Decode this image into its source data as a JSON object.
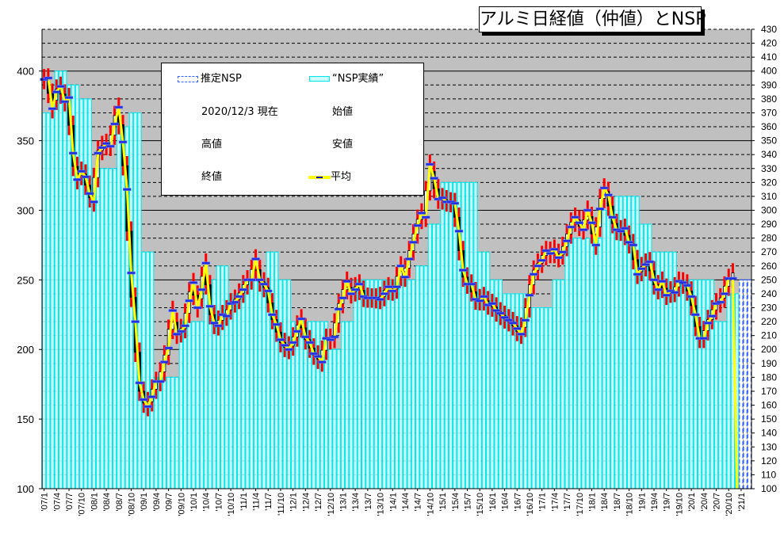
{
  "chart_data": {
    "type": "bar+candlestick+line",
    "title": "アルミ日経値（仲値）とNSP",
    "xlabel": "",
    "ylabel": "",
    "ylim": [
      100,
      430
    ],
    "grid": true,
    "legend_placement": "top-left",
    "legend": {
      "estimated_nsp": "推定NSP",
      "nsp_actual": "“NSP実績”",
      "as_of": "2020/12/3 現在",
      "open": "始値",
      "high": "高値",
      "low": "安値",
      "close": "終値",
      "average": "平均"
    },
    "left_ticks": [
      "100",
      "150",
      "200",
      "250",
      "300",
      "350",
      "400"
    ],
    "right_ticks": [
      "100",
      "110",
      "120",
      "130",
      "140",
      "150",
      "160",
      "170",
      "180",
      "190",
      "200",
      "210",
      "220",
      "230",
      "240",
      "250",
      "260",
      "270",
      "280",
      "290",
      "300",
      "310",
      "320",
      "330",
      "340",
      "350",
      "360",
      "370",
      "380",
      "390",
      "400",
      "410",
      "420",
      "430"
    ],
    "categories": [
      "'07/1",
      "'07/4",
      "'07/7",
      "'07/10",
      "'08/1",
      "'08/4",
      "'08/7",
      "'08/10",
      "'09/1",
      "'09/4",
      "'09/7",
      "'09/10",
      "'10/1",
      "'10/4",
      "'10/7",
      "'10/10",
      "'11/1",
      "'11/4",
      "'11/7",
      "'11/10",
      "'12/1",
      "'12/4",
      "'12/7",
      "'12/10",
      "'13/1",
      "'13/4",
      "'13/7",
      "'13/10",
      "'14/1",
      "'14/4",
      "'14/7",
      "'14/10",
      "'15/1",
      "'15/4",
      "'15/7",
      "'15/10",
      "'16/1",
      "'16/4",
      "'16/7",
      "'16/10",
      "'17/1",
      "'17/4",
      "'17/7",
      "'17/10",
      "'18/1",
      "'18/4",
      "'18/7",
      "'18/10",
      "'19/1",
      "'19/4",
      "'19/7",
      "'19/10",
      "'20/1",
      "'20/4",
      "'20/7",
      "'20/10",
      "'21/1"
    ],
    "nsp_actual_quarterly": [
      370,
      400,
      390,
      380,
      330,
      330,
      360,
      370,
      270,
      180,
      180,
      220,
      220,
      250,
      260,
      240,
      250,
      250,
      270,
      250,
      220,
      220,
      220,
      200,
      220,
      250,
      250,
      250,
      250,
      250,
      260,
      290,
      320,
      320,
      320,
      270,
      250,
      240,
      240,
      230,
      230,
      250,
      280,
      280,
      280,
      300,
      310,
      310,
      290,
      270,
      270,
      250,
      250,
      250,
      220,
      240
    ],
    "nsp_estimated_quarterly": [
      250
    ],
    "monthly_average": [
      394,
      395,
      373,
      385,
      389,
      378,
      381,
      341,
      322,
      328,
      324,
      312,
      306,
      341,
      345,
      348,
      346,
      362,
      374,
      349,
      315,
      255,
      220,
      176,
      164,
      159,
      166,
      177,
      177,
      191,
      201,
      228,
      211,
      213,
      217,
      235,
      248,
      230,
      243,
      262,
      231,
      219,
      217,
      225,
      224,
      233,
      234,
      238,
      243,
      250,
      250,
      265,
      250,
      247,
      242,
      225,
      218,
      207,
      203,
      200,
      205,
      213,
      222,
      209,
      205,
      197,
      195,
      191,
      208,
      207,
      209,
      229,
      237,
      249,
      240,
      243,
      247,
      238,
      237,
      237,
      237,
      236,
      240,
      245,
      242,
      245,
      260,
      252,
      265,
      277,
      289,
      298,
      295,
      333,
      323,
      308,
      309,
      306,
      306,
      305,
      285,
      257,
      247,
      247,
      236,
      235,
      238,
      232,
      233,
      228,
      226,
      223,
      221,
      219,
      215,
      211,
      221,
      239,
      254,
      260,
      264,
      271,
      269,
      272,
      266,
      270,
      278,
      288,
      295,
      291,
      286,
      300,
      291,
      275,
      301,
      316,
      311,
      295,
      286,
      285,
      287,
      277,
      275,
      254,
      258,
      261,
      263,
      250,
      243,
      249,
      239,
      242,
      241,
      249,
      248,
      246,
      238,
      225,
      208,
      208,
      219,
      224,
      233,
      234,
      240,
      251,
      251
    ],
    "colors": {
      "plot_bg": "#c0c0c0",
      "nsp_fill": "#ccffff",
      "nsp_stroke": "#00e8f0",
      "estimated_stroke": "#3060ff",
      "range": "#ff0000",
      "average_line": "#ffff00",
      "average_marker": "#2030e0"
    }
  }
}
